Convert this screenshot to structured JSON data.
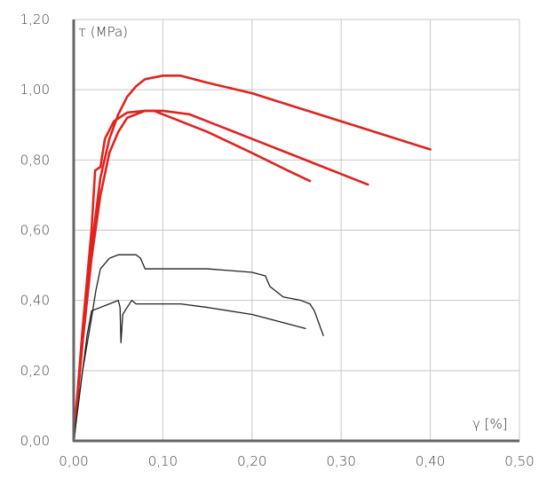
{
  "chart_data": {
    "type": "line",
    "title": "",
    "ylabel": "τ (MPa)",
    "xlabel": "γ [%]",
    "xlim": [
      0,
      0.5
    ],
    "ylim": [
      0,
      1.2
    ],
    "grid": true,
    "x_ticks": [
      {
        "v": 0.0,
        "label": "0,00"
      },
      {
        "v": 0.1,
        "label": "0,10"
      },
      {
        "v": 0.2,
        "label": "0,20"
      },
      {
        "v": 0.3,
        "label": "0,30"
      },
      {
        "v": 0.4,
        "label": "0,40"
      },
      {
        "v": 0.5,
        "label": "0,50"
      }
    ],
    "y_ticks": [
      {
        "v": 0.0,
        "label": "0,00"
      },
      {
        "v": 0.2,
        "label": "0,20"
      },
      {
        "v": 0.4,
        "label": "0,40"
      },
      {
        "v": 0.6,
        "label": "0,60"
      },
      {
        "v": 0.8,
        "label": "0,80"
      },
      {
        "v": 1.0,
        "label": "1,00"
      },
      {
        "v": 1.2,
        "label": "1,20"
      }
    ],
    "colors": {
      "reinforced": "#e0231d",
      "unreinforced": "#222222"
    },
    "series": [
      {
        "group": "reinforced",
        "points": [
          [
            0,
            0
          ],
          [
            0.01,
            0.3
          ],
          [
            0.02,
            0.55
          ],
          [
            0.03,
            0.75
          ],
          [
            0.04,
            0.86
          ],
          [
            0.05,
            0.93
          ],
          [
            0.06,
            0.98
          ],
          [
            0.07,
            1.01
          ],
          [
            0.08,
            1.03
          ],
          [
            0.1,
            1.04
          ],
          [
            0.12,
            1.04
          ],
          [
            0.15,
            1.02
          ],
          [
            0.2,
            0.99
          ],
          [
            0.25,
            0.95
          ],
          [
            0.3,
            0.91
          ],
          [
            0.35,
            0.87
          ],
          [
            0.4,
            0.83
          ]
        ]
      },
      {
        "group": "reinforced",
        "points": [
          [
            0,
            0
          ],
          [
            0.01,
            0.28
          ],
          [
            0.02,
            0.52
          ],
          [
            0.03,
            0.7
          ],
          [
            0.04,
            0.82
          ],
          [
            0.05,
            0.88
          ],
          [
            0.06,
            0.92
          ],
          [
            0.08,
            0.94
          ],
          [
            0.1,
            0.94
          ],
          [
            0.13,
            0.93
          ],
          [
            0.15,
            0.91
          ],
          [
            0.2,
            0.86
          ],
          [
            0.25,
            0.81
          ],
          [
            0.3,
            0.76
          ],
          [
            0.33,
            0.73
          ]
        ]
      },
      {
        "group": "reinforced",
        "points": [
          [
            0,
            0
          ],
          [
            0.01,
            0.32
          ],
          [
            0.02,
            0.6
          ],
          [
            0.024,
            0.77
          ],
          [
            0.03,
            0.78
          ],
          [
            0.035,
            0.86
          ],
          [
            0.045,
            0.91
          ],
          [
            0.06,
            0.935
          ],
          [
            0.08,
            0.94
          ],
          [
            0.09,
            0.94
          ],
          [
            0.12,
            0.91
          ],
          [
            0.15,
            0.88
          ],
          [
            0.2,
            0.82
          ],
          [
            0.24,
            0.77
          ],
          [
            0.265,
            0.74
          ]
        ]
      },
      {
        "group": "unreinforced",
        "points": [
          [
            0,
            0
          ],
          [
            0.01,
            0.2
          ],
          [
            0.02,
            0.35
          ],
          [
            0.025,
            0.43
          ],
          [
            0.03,
            0.49
          ],
          [
            0.04,
            0.52
          ],
          [
            0.05,
            0.53
          ],
          [
            0.07,
            0.53
          ],
          [
            0.075,
            0.52
          ],
          [
            0.08,
            0.49
          ],
          [
            0.1,
            0.49
          ],
          [
            0.15,
            0.49
          ],
          [
            0.2,
            0.48
          ],
          [
            0.215,
            0.47
          ],
          [
            0.22,
            0.44
          ],
          [
            0.235,
            0.41
          ],
          [
            0.255,
            0.4
          ],
          [
            0.265,
            0.39
          ],
          [
            0.27,
            0.37
          ],
          [
            0.28,
            0.3
          ]
        ]
      },
      {
        "group": "unreinforced",
        "points": [
          [
            0,
            0
          ],
          [
            0.01,
            0.2
          ],
          [
            0.015,
            0.3
          ],
          [
            0.02,
            0.37
          ],
          [
            0.03,
            0.38
          ],
          [
            0.04,
            0.39
          ],
          [
            0.05,
            0.4
          ],
          [
            0.052,
            0.38
          ],
          [
            0.053,
            0.28
          ],
          [
            0.055,
            0.36
          ],
          [
            0.06,
            0.38
          ],
          [
            0.065,
            0.4
          ],
          [
            0.07,
            0.39
          ],
          [
            0.08,
            0.39
          ],
          [
            0.1,
            0.39
          ],
          [
            0.12,
            0.39
          ],
          [
            0.15,
            0.38
          ],
          [
            0.2,
            0.36
          ],
          [
            0.23,
            0.34
          ],
          [
            0.26,
            0.32
          ]
        ]
      }
    ]
  }
}
